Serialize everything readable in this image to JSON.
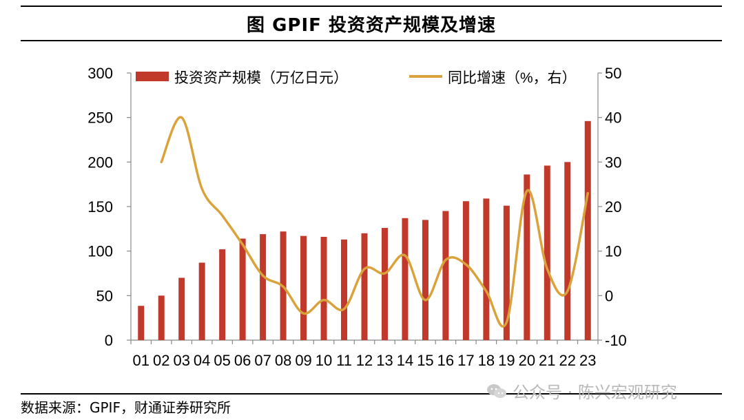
{
  "header": {
    "title": "图  GPIF 投资资产规模及增速"
  },
  "chart_data": {
    "type": "bar+line",
    "title": "图  GPIF 投资资产规模及增速",
    "categories": [
      "01",
      "02",
      "03",
      "04",
      "05",
      "06",
      "07",
      "08",
      "09",
      "10",
      "11",
      "12",
      "13",
      "14",
      "15",
      "16",
      "17",
      "18",
      "19",
      "20",
      "21",
      "22",
      "23"
    ],
    "series": [
      {
        "name": "投资资产规模（万亿日元）",
        "type": "bar",
        "axis": "left",
        "color": "#c0392b",
        "values": [
          38.5,
          50,
          70,
          87,
          102,
          114,
          119,
          122,
          117,
          116,
          113,
          120,
          126,
          137,
          135,
          145,
          156,
          159,
          151,
          186,
          196,
          200,
          246
        ]
      },
      {
        "name": "同比增速（%，右）",
        "type": "line",
        "axis": "right",
        "color": "#d9a23a",
        "values": [
          null,
          30,
          40,
          24,
          18,
          11.5,
          4.5,
          2,
          -4,
          -1,
          -3,
          6,
          5,
          9,
          -1,
          8,
          7,
          1,
          -6,
          23.5,
          6,
          1,
          23
        ]
      }
    ],
    "left_axis": {
      "min": 0,
      "max": 300,
      "step": 50,
      "ticks": [
        "0",
        "50",
        "100",
        "150",
        "200",
        "250",
        "300"
      ]
    },
    "right_axis": {
      "min": -10,
      "max": 50,
      "step": 10,
      "ticks": [
        "-10",
        "0",
        "10",
        "20",
        "30",
        "40",
        "50"
      ]
    },
    "legend_position": "top"
  },
  "footer": {
    "source": "数据来源：GPIF，财通证券研究所",
    "watermark": "公众号 · 陈兴宏观研究"
  }
}
